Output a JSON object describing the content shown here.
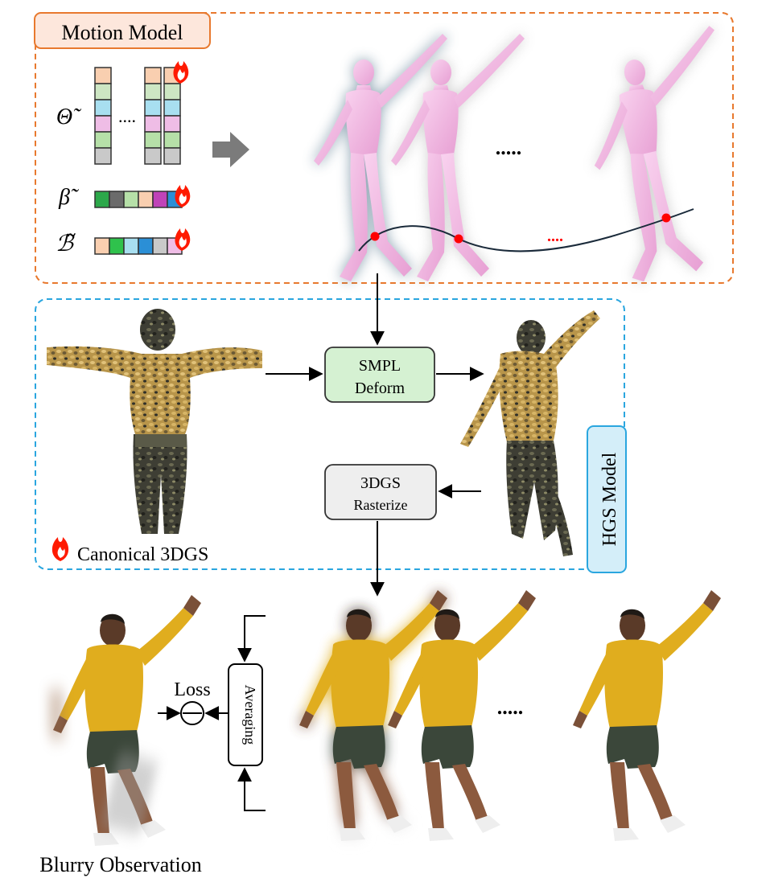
{
  "motion_model": {
    "title": "Motion Model",
    "theta_label": "Θ̃",
    "beta_label": "β̃",
    "b_label": "ℬ̃",
    "column_ellipsis": "....",
    "pose_ellipsis": ".....",
    "trajectory_ellipsis": "....",
    "colors": {
      "border": "#e8792e",
      "title_fill": "#fde7dc",
      "trajectory_point": "#ff0000"
    }
  },
  "hgs_model": {
    "title": "HGS Model",
    "canonical_label": "Canonical 3DGS",
    "smpl_deform_lines": [
      "SMPL",
      "Deform"
    ],
    "rasterize_lines": [
      "3DGS",
      "Rasterize"
    ],
    "colors": {
      "border": "#2aa6df",
      "title_fill": "#d4eef9",
      "smpl_fill": "#d5f1d2",
      "rasterize_fill": "#eeeeee"
    }
  },
  "loss_section": {
    "loss_label": "Loss",
    "averaging_label": "Averaging",
    "render_ellipsis": ".....",
    "blurry_label": "Blurry Observation"
  },
  "colors": {
    "mesh_pink": "#f2b6e2",
    "mesh_shadow": "#8ea3ae",
    "shirt": "#e0b020",
    "shorts": "#3a4a3a",
    "skin": "#9a6a4a",
    "hair": "#2a2420",
    "gaussian_gold": "#c9a24a",
    "gaussian_dark": "#3b3b30",
    "flame": "#ff1a00"
  }
}
